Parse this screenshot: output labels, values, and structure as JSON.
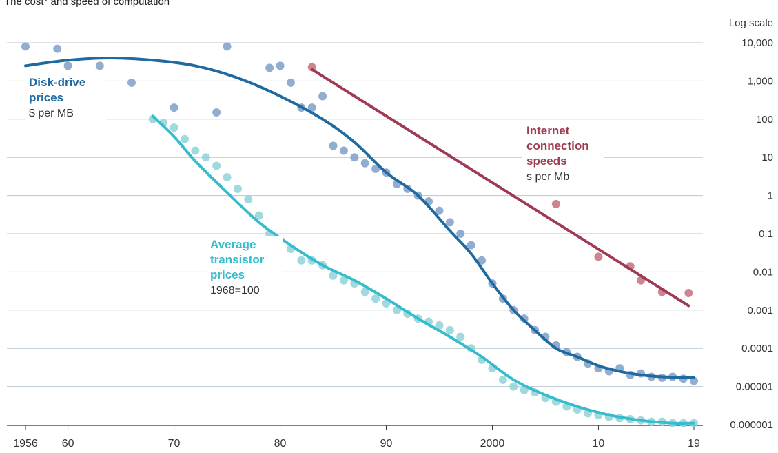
{
  "chart_data": {
    "type": "line",
    "title": "The cost* and speed of computation",
    "scale_label": "Log scale",
    "x_ticks": [
      {
        "value": 1956,
        "label": "1956"
      },
      {
        "value": 1960,
        "label": "60"
      },
      {
        "value": 1970,
        "label": "70"
      },
      {
        "value": 1980,
        "label": "80"
      },
      {
        "value": 1990,
        "label": "90"
      },
      {
        "value": 2000,
        "label": "2000"
      },
      {
        "value": 2010,
        "label": "10"
      },
      {
        "value": 2019,
        "label": "19"
      }
    ],
    "y_ticks": [
      {
        "value": 10000,
        "label": "10,000"
      },
      {
        "value": 1000,
        "label": "1,000"
      },
      {
        "value": 100,
        "label": "100"
      },
      {
        "value": 10,
        "label": "10"
      },
      {
        "value": 1,
        "label": "1"
      },
      {
        "value": 0.1,
        "label": "0.1"
      },
      {
        "value": 0.01,
        "label": "0.01"
      },
      {
        "value": 0.001,
        "label": "0.001"
      },
      {
        "value": 0.0001,
        "label": "0.0001"
      },
      {
        "value": 1e-05,
        "label": "0.00001"
      },
      {
        "value": 1e-06,
        "label": "0.000001"
      }
    ],
    "xlim": [
      1956,
      2019
    ],
    "ylim": [
      5e-07,
      20000
    ],
    "y_scale": "log",
    "grid": true,
    "series": [
      {
        "id": "disk",
        "label_lines": [
          "Disk-drive",
          "prices"
        ],
        "unit": "$ per MB",
        "color": "#1f6aa0",
        "point_color": "#7f9fc7",
        "trend": [
          [
            1956,
            2500
          ],
          [
            1960,
            3500
          ],
          [
            1964,
            4000
          ],
          [
            1968,
            3500
          ],
          [
            1972,
            2500
          ],
          [
            1976,
            1200
          ],
          [
            1980,
            400
          ],
          [
            1984,
            100
          ],
          [
            1987,
            25
          ],
          [
            1990,
            4
          ],
          [
            1993,
            1
          ],
          [
            1996,
            0.12
          ],
          [
            1998,
            0.03
          ],
          [
            2000,
            0.005
          ],
          [
            2002,
            0.001
          ],
          [
            2004,
            0.0003
          ],
          [
            2006,
            0.0001
          ],
          [
            2008,
            6e-05
          ],
          [
            2010,
            3.5e-05
          ],
          [
            2012,
            2.5e-05
          ],
          [
            2014,
            2e-05
          ],
          [
            2016,
            1.8e-05
          ],
          [
            2019,
            1.7e-05
          ]
        ],
        "points": [
          [
            1956,
            8000
          ],
          [
            1959,
            7000
          ],
          [
            1960,
            2500
          ],
          [
            1963,
            2500
          ],
          [
            1966,
            900
          ],
          [
            1970,
            200
          ],
          [
            1974,
            150
          ],
          [
            1975,
            8000
          ],
          [
            1979,
            2200
          ],
          [
            1980,
            2500
          ],
          [
            1981,
            900
          ],
          [
            1982,
            200
          ],
          [
            1983,
            200
          ],
          [
            1984,
            400
          ],
          [
            1985,
            20
          ],
          [
            1986,
            15
          ],
          [
            1987,
            10
          ],
          [
            1988,
            7
          ],
          [
            1989,
            5
          ],
          [
            1990,
            4
          ],
          [
            1991,
            2
          ],
          [
            1992,
            1.5
          ],
          [
            1993,
            1
          ],
          [
            1994,
            0.7
          ],
          [
            1995,
            0.4
          ],
          [
            1996,
            0.2
          ],
          [
            1997,
            0.1
          ],
          [
            1998,
            0.05
          ],
          [
            1999,
            0.02
          ],
          [
            2000,
            0.005
          ],
          [
            2001,
            0.002
          ],
          [
            2002,
            0.001
          ],
          [
            2003,
            0.0006
          ],
          [
            2004,
            0.0003
          ],
          [
            2005,
            0.0002
          ],
          [
            2006,
            0.00012
          ],
          [
            2007,
            8e-05
          ],
          [
            2008,
            6e-05
          ],
          [
            2009,
            4e-05
          ],
          [
            2010,
            3e-05
          ],
          [
            2011,
            2.5e-05
          ],
          [
            2012,
            3e-05
          ],
          [
            2013,
            2e-05
          ],
          [
            2014,
            2.2e-05
          ],
          [
            2015,
            1.8e-05
          ],
          [
            2016,
            1.7e-05
          ],
          [
            2017,
            1.8e-05
          ],
          [
            2018,
            1.6e-05
          ],
          [
            2019,
            1.4e-05
          ]
        ]
      },
      {
        "id": "internet",
        "label_lines": [
          "Internet",
          "connection",
          "speeds"
        ],
        "unit": "s per Mb",
        "color": "#9e3a52",
        "point_color": "#c4707e",
        "trend": [
          [
            1983,
            2000
          ],
          [
            2018.5,
            0.0013
          ]
        ],
        "points": [
          [
            1983,
            2300
          ],
          [
            2006,
            0.6
          ],
          [
            2010,
            0.025
          ],
          [
            2013,
            0.014
          ],
          [
            2014,
            0.006
          ],
          [
            2016,
            0.003
          ],
          [
            2018.5,
            0.0028
          ]
        ]
      },
      {
        "id": "transistor",
        "label_lines": [
          "Average",
          "transistor",
          "prices"
        ],
        "unit": "1968=100",
        "color": "#36bccc",
        "point_color": "#8fd2d8",
        "trend": [
          [
            1968,
            120
          ],
          [
            1970,
            35
          ],
          [
            1972,
            8
          ],
          [
            1975,
            1.2
          ],
          [
            1978,
            0.2
          ],
          [
            1981,
            0.05
          ],
          [
            1984,
            0.015
          ],
          [
            1987,
            0.006
          ],
          [
            1990,
            0.002
          ],
          [
            1993,
            0.0006
          ],
          [
            1996,
            0.0002
          ],
          [
            1999,
            6e-05
          ],
          [
            2002,
            1.5e-05
          ],
          [
            2005,
            6e-06
          ],
          [
            2008,
            3e-06
          ],
          [
            2011,
            1.8e-06
          ],
          [
            2014,
            1.3e-06
          ],
          [
            2017,
            1.1e-06
          ],
          [
            2019,
            1.1e-06
          ]
        ],
        "points": [
          [
            1968,
            100
          ],
          [
            1969,
            80
          ],
          [
            1970,
            60
          ],
          [
            1971,
            30
          ],
          [
            1972,
            15
          ],
          [
            1973,
            10
          ],
          [
            1974,
            6
          ],
          [
            1975,
            3
          ],
          [
            1976,
            1.5
          ],
          [
            1977,
            0.8
          ],
          [
            1978,
            0.3
          ],
          [
            1979,
            0.1
          ],
          [
            1980,
            0.07
          ],
          [
            1981,
            0.04
          ],
          [
            1982,
            0.02
          ],
          [
            1983,
            0.02
          ],
          [
            1984,
            0.015
          ],
          [
            1985,
            0.008
          ],
          [
            1986,
            0.006
          ],
          [
            1987,
            0.005
          ],
          [
            1988,
            0.003
          ],
          [
            1989,
            0.002
          ],
          [
            1990,
            0.0015
          ],
          [
            1991,
            0.001
          ],
          [
            1992,
            0.0008
          ],
          [
            1993,
            0.0006
          ],
          [
            1994,
            0.0005
          ],
          [
            1995,
            0.0004
          ],
          [
            1996,
            0.0003
          ],
          [
            1997,
            0.0002
          ],
          [
            1998,
            0.0001
          ],
          [
            1999,
            5e-05
          ],
          [
            2000,
            3e-05
          ],
          [
            2001,
            1.5e-05
          ],
          [
            2002,
            1e-05
          ],
          [
            2003,
            8e-06
          ],
          [
            2004,
            7e-06
          ],
          [
            2005,
            5e-06
          ],
          [
            2006,
            4e-06
          ],
          [
            2007,
            3e-06
          ],
          [
            2008,
            2.5e-06
          ],
          [
            2009,
            2e-06
          ],
          [
            2010,
            1.8e-06
          ],
          [
            2011,
            1.6e-06
          ],
          [
            2012,
            1.5e-06
          ],
          [
            2013,
            1.4e-06
          ],
          [
            2014,
            1.3e-06
          ],
          [
            2015,
            1.2e-06
          ],
          [
            2016,
            1.2e-06
          ],
          [
            2017,
            1.1e-06
          ],
          [
            2018,
            1.1e-06
          ],
          [
            2019,
            1.1e-06
          ]
        ]
      }
    ]
  }
}
